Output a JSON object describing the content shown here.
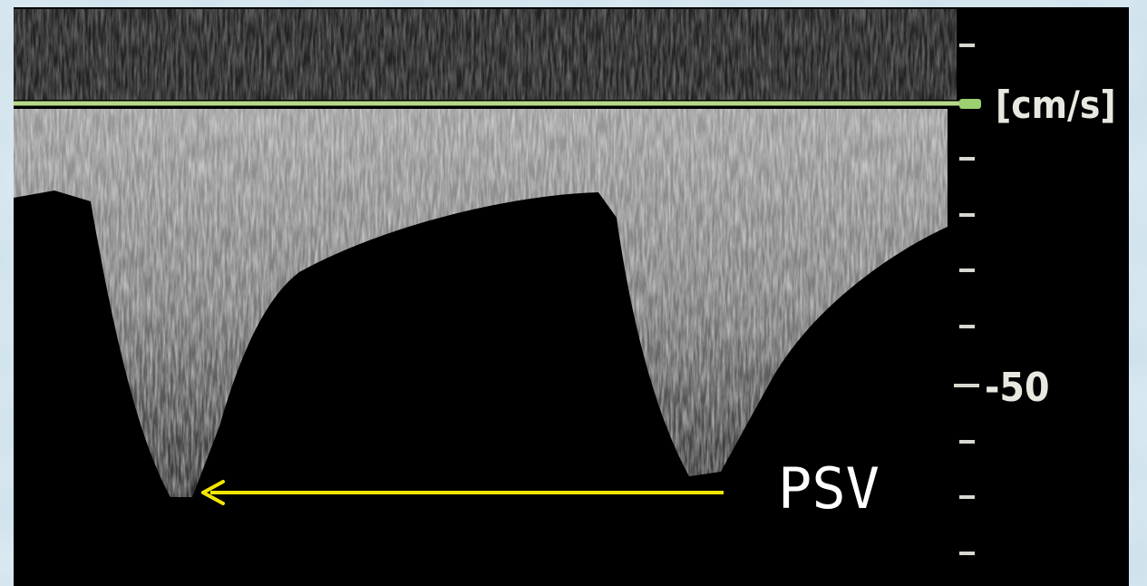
{
  "unit_label": "[cm/s]",
  "scale_label": "-50",
  "annotation": "PSV"
}
